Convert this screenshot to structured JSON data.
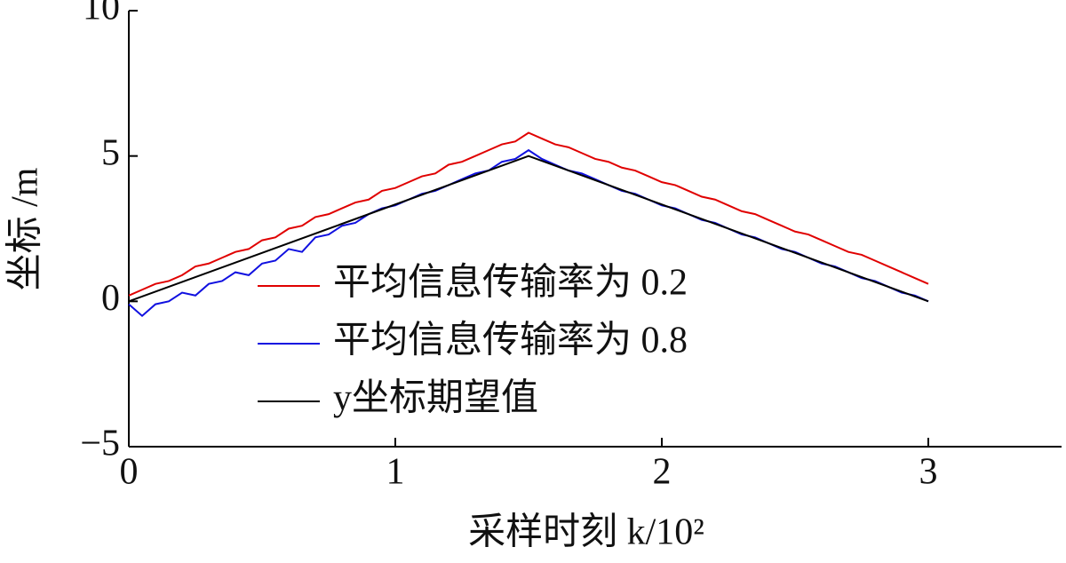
{
  "chart_data": {
    "type": "line",
    "x_label": "采样时刻 k/10²",
    "y_label": "坐标 /m",
    "xlim": [
      0,
      3.5
    ],
    "xticks": [
      0,
      1,
      2,
      3
    ],
    "ylim": [
      -5,
      10
    ],
    "yticks": [
      {
        "value": -5,
        "label": "−5"
      },
      0,
      5,
      10
    ],
    "legend": "center",
    "series": [
      {
        "name": "平均信息传输率为 0.2",
        "color": "#e00000",
        "x": [
          0,
          0.05,
          0.1,
          0.15,
          0.2,
          0.25,
          0.3,
          0.35,
          0.4,
          0.45,
          0.5,
          0.55,
          0.6,
          0.65,
          0.7,
          0.75,
          0.8,
          0.85,
          0.9,
          0.95,
          1,
          1.05,
          1.1,
          1.15,
          1.2,
          1.25,
          1.3,
          1.35,
          1.4,
          1.45,
          1.5,
          1.55,
          1.6,
          1.65,
          1.7,
          1.75,
          1.8,
          1.85,
          1.9,
          1.95,
          2,
          2.05,
          2.1,
          2.15,
          2.2,
          2.25,
          2.3,
          2.35,
          2.4,
          2.45,
          2.5,
          2.55,
          2.6,
          2.65,
          2.7,
          2.75,
          2.8,
          2.85,
          2.9,
          2.95,
          3
        ],
        "values": [
          0.2,
          0.4,
          0.6,
          0.7,
          0.9,
          1.2,
          1.3,
          1.5,
          1.7,
          1.8,
          2.1,
          2.2,
          2.5,
          2.6,
          2.9,
          3.0,
          3.2,
          3.4,
          3.5,
          3.8,
          3.9,
          4.1,
          4.3,
          4.4,
          4.7,
          4.8,
          5.0,
          5.2,
          5.4,
          5.5,
          5.8,
          5.6,
          5.4,
          5.3,
          5.1,
          4.9,
          4.8,
          4.6,
          4.5,
          4.3,
          4.1,
          4.0,
          3.8,
          3.6,
          3.5,
          3.3,
          3.1,
          3.0,
          2.8,
          2.6,
          2.4,
          2.3,
          2.1,
          1.9,
          1.7,
          1.6,
          1.4,
          1.2,
          1.0,
          0.8,
          0.6
        ]
      },
      {
        "name": "平均信息传输率为 0.8",
        "color": "#1010e0",
        "x": [
          0,
          0.05,
          0.1,
          0.15,
          0.2,
          0.25,
          0.3,
          0.35,
          0.4,
          0.45,
          0.5,
          0.55,
          0.6,
          0.65,
          0.7,
          0.75,
          0.8,
          0.85,
          0.9,
          0.95,
          1,
          1.05,
          1.1,
          1.15,
          1.2,
          1.25,
          1.3,
          1.35,
          1.4,
          1.45,
          1.5,
          1.55,
          1.6,
          1.65,
          1.7,
          1.75,
          1.8,
          1.85,
          1.9,
          1.95,
          2,
          2.05,
          2.1,
          2.15,
          2.2,
          2.25,
          2.3,
          2.35,
          2.4,
          2.45,
          2.5,
          2.55,
          2.6,
          2.65,
          2.7,
          2.75,
          2.8,
          2.85,
          2.9,
          2.95,
          3
        ],
        "values": [
          -0.1,
          -0.5,
          -0.1,
          0.0,
          0.3,
          0.2,
          0.6,
          0.7,
          1.0,
          0.9,
          1.3,
          1.4,
          1.8,
          1.7,
          2.2,
          2.3,
          2.6,
          2.7,
          3.0,
          3.2,
          3.3,
          3.5,
          3.7,
          3.8,
          4.0,
          4.2,
          4.4,
          4.5,
          4.8,
          4.9,
          5.2,
          4.9,
          4.7,
          4.5,
          4.4,
          4.2,
          4.0,
          3.8,
          3.7,
          3.5,
          3.3,
          3.2,
          3.0,
          2.8,
          2.7,
          2.5,
          2.3,
          2.2,
          2.0,
          1.8,
          1.7,
          1.5,
          1.3,
          1.2,
          1.0,
          0.8,
          0.7,
          0.5,
          0.3,
          0.2,
          0.0
        ]
      },
      {
        "name": "y坐标期望值",
        "color": "#000000",
        "x": [
          0,
          1.5,
          3
        ],
        "values": [
          0,
          5,
          0
        ]
      }
    ]
  }
}
